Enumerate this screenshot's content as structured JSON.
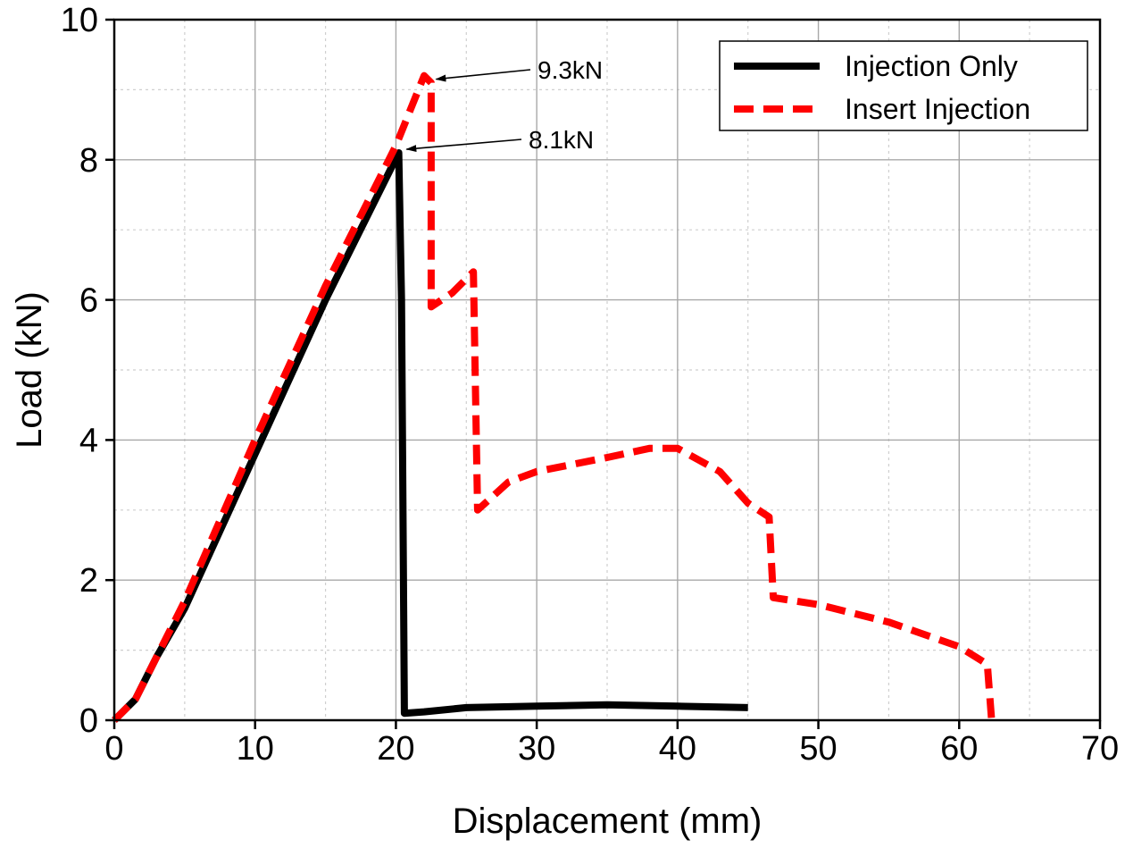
{
  "chart_data": {
    "type": "line",
    "xlabel": "Displacement (mm)",
    "ylabel": "Load (kN)",
    "xlim": [
      0,
      70
    ],
    "ylim": [
      0,
      10
    ],
    "x_ticks": [
      "0",
      "10",
      "20",
      "30",
      "40",
      "50",
      "60",
      "70"
    ],
    "y_ticks": [
      "0",
      "2",
      "4",
      "6",
      "8",
      "10"
    ],
    "grid": true,
    "legend_position": "top-right",
    "series": [
      {
        "name": "Injection Only",
        "color": "#000000",
        "style": "solid",
        "points": [
          [
            0,
            0
          ],
          [
            1.5,
            0.3
          ],
          [
            3,
            0.9
          ],
          [
            5,
            1.6
          ],
          [
            10,
            3.8
          ],
          [
            15,
            6.0
          ],
          [
            20.2,
            8.1
          ],
          [
            20.4,
            6.0
          ],
          [
            20.6,
            0.1
          ],
          [
            22,
            0.12
          ],
          [
            25,
            0.18
          ],
          [
            30,
            0.2
          ],
          [
            35,
            0.22
          ],
          [
            40,
            0.2
          ],
          [
            45,
            0.18
          ]
        ]
      },
      {
        "name": "Insert Injection",
        "color": "#ff0000",
        "style": "dashed",
        "points": [
          [
            0,
            0
          ],
          [
            1.5,
            0.3
          ],
          [
            3,
            0.9
          ],
          [
            5,
            1.7
          ],
          [
            10,
            4.0
          ],
          [
            15,
            6.2
          ],
          [
            20,
            8.2
          ],
          [
            22,
            9.2
          ],
          [
            22.5,
            9.1
          ],
          [
            22.5,
            5.9
          ],
          [
            24,
            6.1
          ],
          [
            25.5,
            6.4
          ],
          [
            25.8,
            3.0
          ],
          [
            28,
            3.4
          ],
          [
            30,
            3.55
          ],
          [
            35,
            3.75
          ],
          [
            38,
            3.88
          ],
          [
            40,
            3.88
          ],
          [
            43,
            3.55
          ],
          [
            45,
            3.1
          ],
          [
            46.5,
            2.9
          ],
          [
            46.8,
            1.75
          ],
          [
            50,
            1.65
          ],
          [
            55,
            1.4
          ],
          [
            60,
            1.05
          ],
          [
            62,
            0.8
          ],
          [
            62.3,
            0
          ],
          [
            62.8,
            0
          ]
        ]
      }
    ],
    "annotations": [
      {
        "text": "9.3kN",
        "x": 22.6,
        "y": 9.15
      },
      {
        "text": "8.1kN",
        "x": 20.5,
        "y": 8.15
      }
    ]
  }
}
